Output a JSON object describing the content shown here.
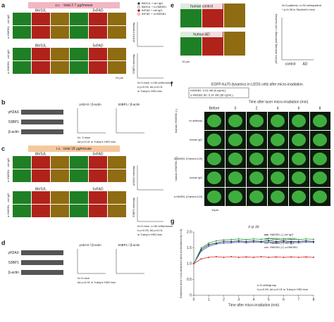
{
  "panels": {
    "a": {
      "label": "a",
      "banner": "s.c. : total 2.7 μg/mouse",
      "groups": [
        "B6/SJL",
        "5xFAD"
      ],
      "rows": [
        "ctrl IgG",
        "α-HMGB1"
      ],
      "legend": [
        "B6/SJL + ctrl IgG",
        "B6/SJL + α-HMGB1",
        "5xFAD + ctrl IgG",
        "5xFAD + α-HMGB1"
      ],
      "plots": [
        "γH2AX intensity",
        "53BP1 intensity"
      ],
      "scale": "10 μm",
      "notes": [
        "N=3 mice, n=30 cells/mouse",
        "# p<0.05, ## p<0.01",
        "in Tukey's HSD test"
      ]
    },
    "b": {
      "label": "b",
      "blots": [
        "γH2AX",
        "53BP1",
        "β-actin"
      ],
      "plots": [
        "γH2AX / β-actin",
        "53BP1 / β-actin"
      ],
      "notes": [
        "N= 3 mice",
        "## p<0.01 in Tukey's HSD test"
      ]
    },
    "c": {
      "label": "c",
      "banner": "i.v. : total 18 μg/mouse",
      "groups": [
        "B6/SJL",
        "5xFAD"
      ],
      "rows": [
        "ctrl IgG",
        "α-HMGB1"
      ],
      "plots": [
        "γH2AX intensity",
        "53BP1 intensity"
      ],
      "notes": [
        "N=3 mice, n=30 cells/mouse",
        "# p<0.05, ## p<0.01",
        "in Tukey's HSD test"
      ]
    },
    "d": {
      "label": "d",
      "blots": [
        "γH2AX",
        "53BP1",
        "β-actin"
      ],
      "plots": [
        "γH2AX / β-actin",
        "53BP1 / β-actin"
      ],
      "notes": [
        "N=3 mice",
        "## p<0.01 in Tukey's HSD test"
      ]
    },
    "e": {
      "label": "e",
      "images": [
        "human control",
        "human AD"
      ],
      "ylabel": "γH2AX intensity (intensity / cell nucleus)",
      "categories": [
        "control",
        "AD"
      ],
      "notes": [
        "N=3 patients, n=30 cells/patient",
        "* p<0.05 in Student's t test"
      ],
      "scale": "10 μm"
    },
    "f": {
      "label": "f",
      "title": "EGFP-Ku70 dynamics in U2OS cells after micro-irradiation",
      "conditions": [
        "rHMGB1: 0.24 nM (6 ng/mL)",
        "α-HMGB1 Ab: 0.24 nM (36 ng/mL)"
      ],
      "time_label": "Time after laser micro-irradiation (min)",
      "times": [
        "Before",
        "0",
        "2",
        "4",
        "6",
        "8"
      ],
      "rows": [
        "no antibody",
        "human IgG",
        "α-HMGB1 (Chimera-129)",
        "human IgG",
        "α-HMGB1 (Chimera-129)"
      ],
      "groups": [
        "human rHMGB1 (-)",
        "human rHMGB1 (+)"
      ],
      "scale": "10μm"
    }
  },
  "chart_data": {
    "type": "line",
    "label": "g",
    "annotation": "# or ##",
    "xlabel": "Time after micro-irradiation (min)",
    "ylabel": "Detached area / non-detached area (normalized by t=0)",
    "notes": [
      "n=5 cells/group",
      "# p<0.05, ## p<0.01 in Tukey's HSD test"
    ],
    "x": [
      0,
      0.5,
      1,
      1.5,
      2,
      2.5,
      3,
      3.5,
      4,
      4.5,
      5,
      5.5,
      6,
      6.5,
      7,
      7.5,
      8
    ],
    "xlim": [
      0,
      8
    ],
    "xticks": [
      0,
      1,
      2,
      3,
      4,
      5,
      6,
      7,
      8
    ],
    "ylim": [
      0,
      2
    ],
    "yticks": [
      0,
      0.5,
      {
        "value": 1,
        "label": "1.0"
      },
      1.5,
      {
        "value": 2,
        "label": "2.0"
      }
    ],
    "series": [
      {
        "name": "HMGB1 (-) ctrl IgG",
        "color": "#222222",
        "values": [
          1,
          1.45,
          1.6,
          1.65,
          1.7,
          1.7,
          1.72,
          1.7,
          1.72,
          1.7,
          1.73,
          1.7,
          1.72,
          1.7,
          1.7,
          1.72,
          1.7
        ]
      },
      {
        "name": "HMGB1 (-) α-HMGB1",
        "color": "#2a52be",
        "values": [
          1,
          1.4,
          1.55,
          1.62,
          1.65,
          1.66,
          1.68,
          1.66,
          1.68,
          1.67,
          1.68,
          1.66,
          1.68,
          1.67,
          1.66,
          1.68,
          1.67
        ]
      },
      {
        "name": "HMGB1 (+) ctrl IgG",
        "color": "#2e9e3a",
        "values": [
          1,
          1.5,
          1.65,
          1.72,
          1.75,
          1.76,
          1.78,
          1.76,
          1.78,
          1.77,
          1.8,
          1.77,
          1.78,
          1.77,
          1.76,
          1.78,
          1.77
        ]
      },
      {
        "name": "HMGB1 (+) α-HMGB1",
        "color": "#d62728",
        "values": [
          1,
          1.15,
          1.2,
          1.22,
          1.2,
          1.22,
          1.2,
          1.21,
          1.2,
          1.22,
          1.2,
          1.21,
          1.2,
          1.21,
          1.2,
          1.21,
          1.2
        ]
      }
    ],
    "grid": false,
    "legend": "top-right"
  }
}
